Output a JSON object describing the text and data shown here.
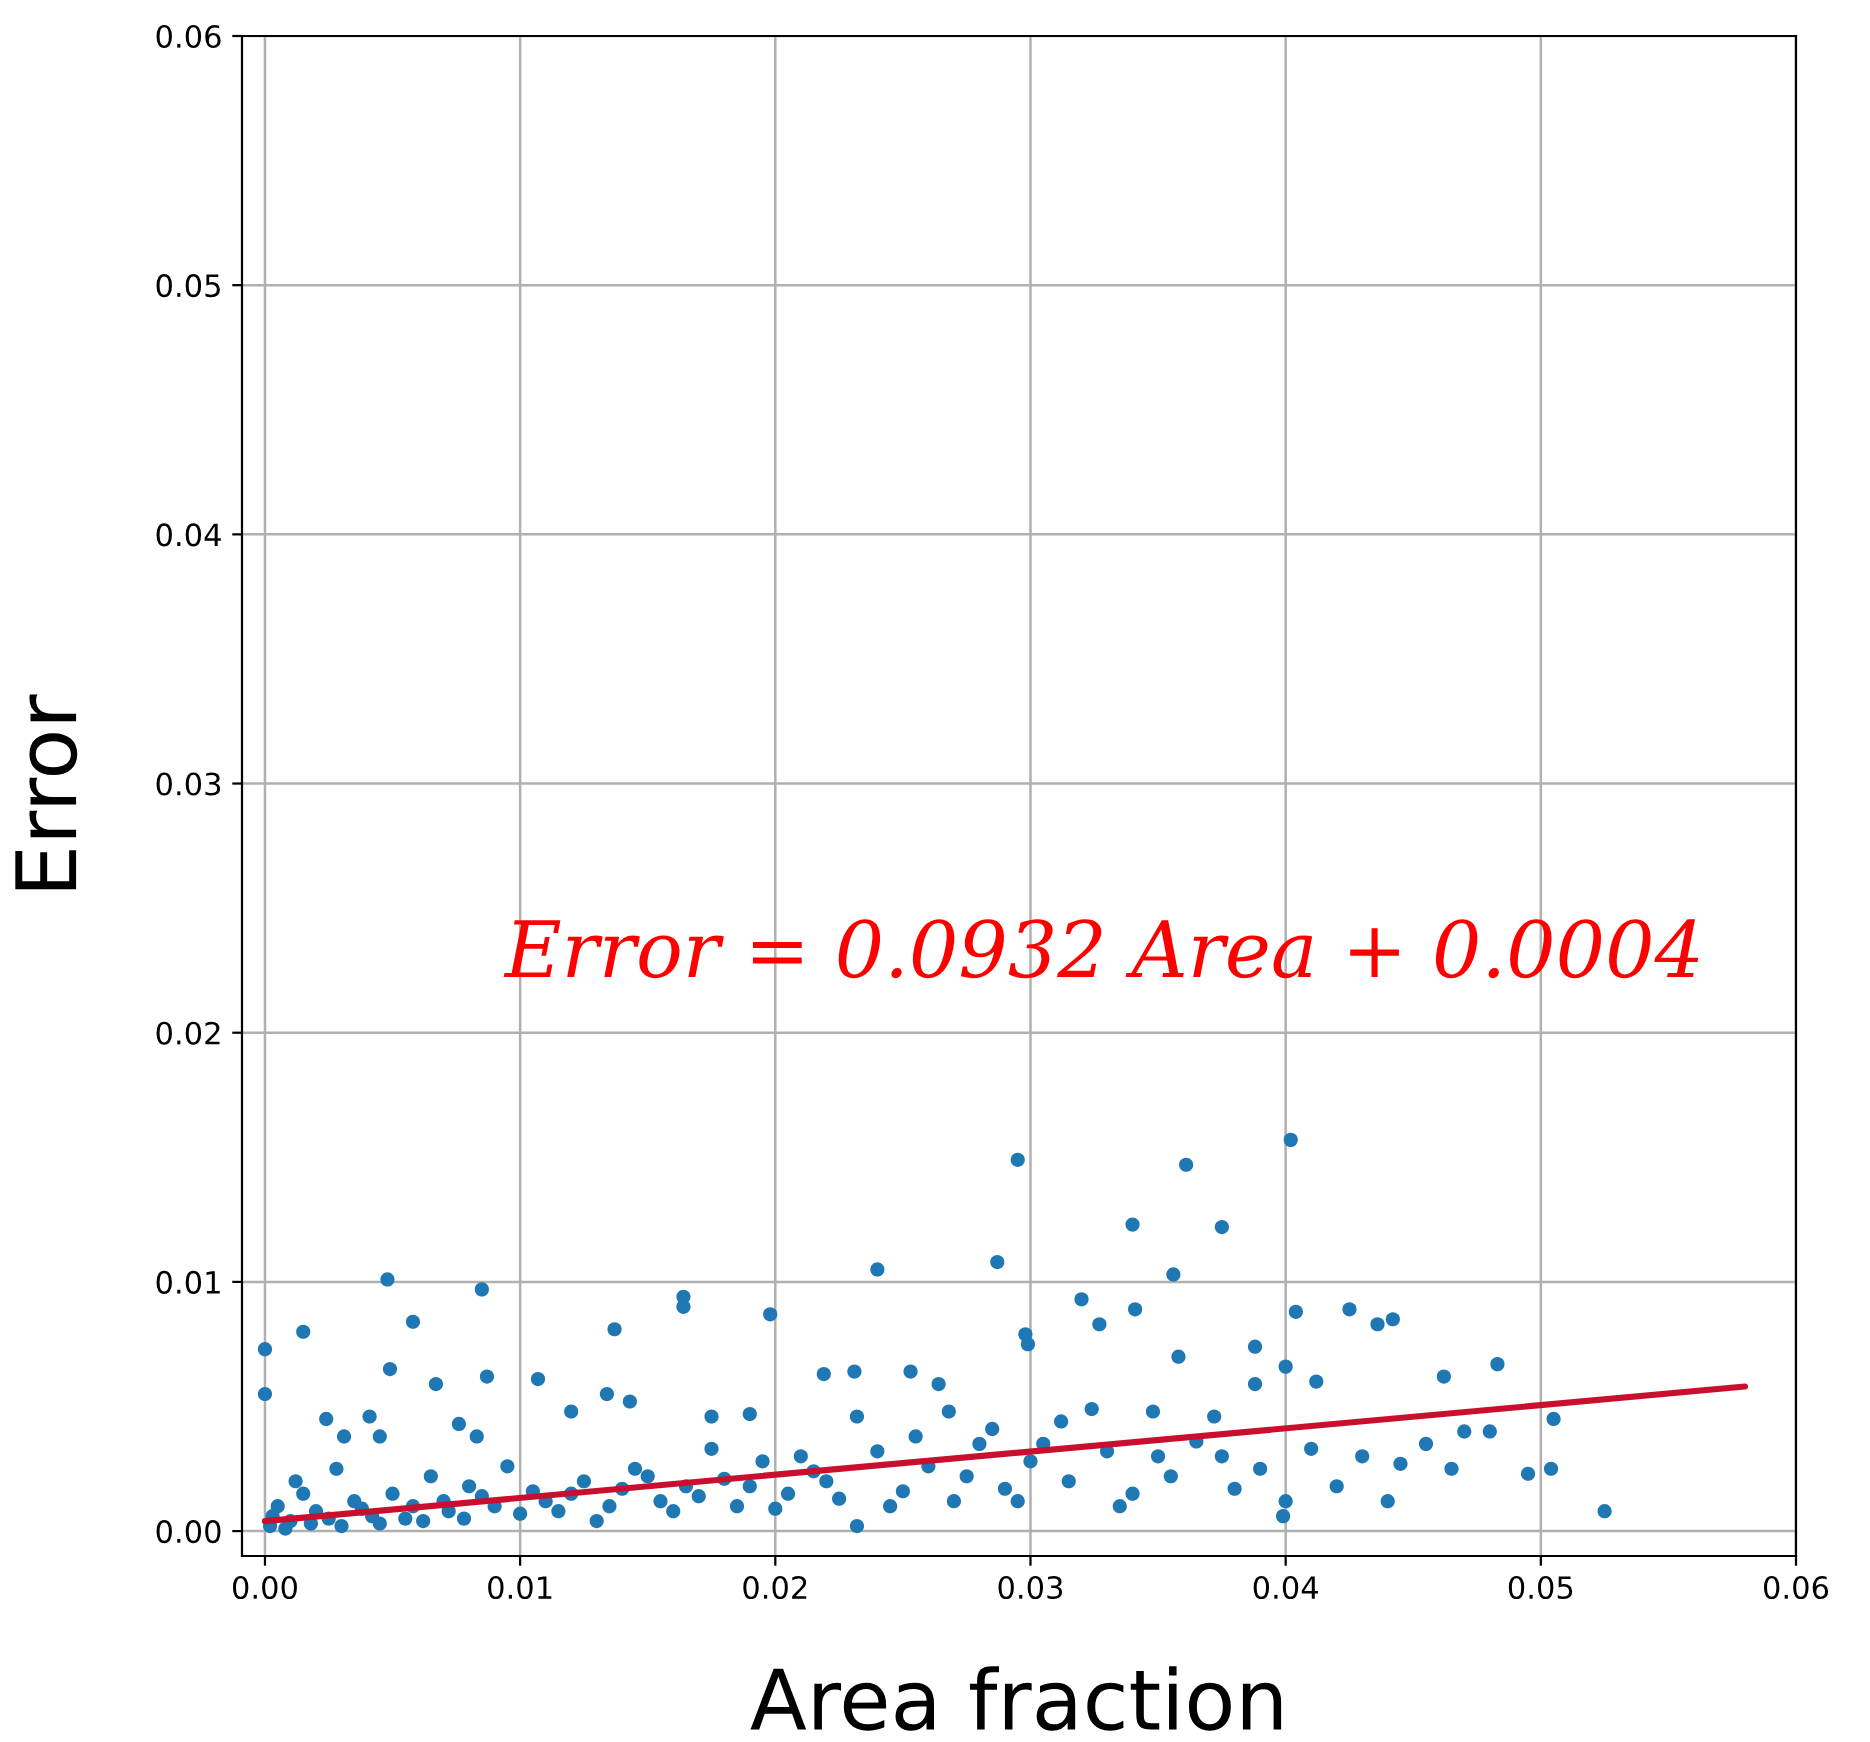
{
  "chart_data": {
    "type": "scatter",
    "xlabel": "Area fraction",
    "ylabel": "Error",
    "annotations": [
      "Error = 0.0932 Area + 0.0004"
    ],
    "xlim": [
      -0.0009,
      0.06
    ],
    "ylim": [
      -0.001,
      0.06
    ],
    "xticks": [
      {
        "value": 0,
        "label": "0.00"
      },
      {
        "value": 0.01,
        "label": "0.01"
      },
      {
        "value": 0.02,
        "label": "0.02"
      },
      {
        "value": 0.03,
        "label": "0.03"
      },
      {
        "value": 0.04,
        "label": "0.04"
      },
      {
        "value": 0.05,
        "label": "0.05"
      },
      {
        "value": 0.06,
        "label": "0.06"
      }
    ],
    "yticks": [
      {
        "value": 0,
        "label": "0.00"
      },
      {
        "value": 0.01,
        "label": "0.01"
      },
      {
        "value": 0.02,
        "label": "0.02"
      },
      {
        "value": 0.03,
        "label": "0.03"
      },
      {
        "value": 0.04,
        "label": "0.04"
      },
      {
        "value": 0.05,
        "label": "0.05"
      },
      {
        "value": 0.06,
        "label": "0.06"
      }
    ],
    "grid": true,
    "series": [
      {
        "marker": "circle",
        "color": "#1f77b4",
        "x": [
          0.0295,
          0.0361,
          0.0402,
          0.034,
          0.0375,
          0.0356,
          0.024,
          0.0287,
          0.0048,
          0.0085,
          0.0,
          0.0015,
          0.0058,
          0.0164,
          0.0164,
          0.0198,
          0.0137,
          0.0,
          0.0049,
          0.0067,
          0.0087,
          0.0107,
          0.0041,
          0.0024,
          0.0031,
          0.0045,
          0.0076,
          0.0083,
          0.012,
          0.0134,
          0.0143,
          0.0175,
          0.0219,
          0.0231,
          0.0253,
          0.0264,
          0.0298,
          0.0299,
          0.032,
          0.0327,
          0.0341,
          0.0358,
          0.0388,
          0.04,
          0.0404,
          0.0425,
          0.0436,
          0.0442,
          0.0483,
          0.0462,
          0.0388,
          0.0412,
          0.0232,
          0.019,
          0.0268,
          0.0312,
          0.0324,
          0.0348,
          0.0372,
          0.0505,
          0.0504,
          0.0495,
          0.0525,
          0.048,
          0.047,
          0.0455,
          0.0445,
          0.043,
          0.042,
          0.04,
          0.0399,
          0.039,
          0.0375,
          0.0365,
          0.0355,
          0.034,
          0.033,
          0.0315,
          0.03,
          0.029,
          0.028,
          0.027,
          0.026,
          0.025,
          0.024,
          0.0232,
          0.0225,
          0.0215,
          0.0205,
          0.0195,
          0.0185,
          0.0175,
          0.0165,
          0.0155,
          0.0145,
          0.0135,
          0.0125,
          0.0115,
          0.0105,
          0.0095,
          0.009,
          0.008,
          0.0072,
          0.0065,
          0.0058,
          0.005,
          0.0042,
          0.0035,
          0.0028,
          0.002,
          0.0015,
          0.001,
          0.0005,
          0.0002,
          0.0003,
          0.0008,
          0.0012,
          0.0018,
          0.0025,
          0.003,
          0.0038,
          0.0045,
          0.0055,
          0.0062,
          0.007,
          0.0078,
          0.0085,
          0.01,
          0.011,
          0.012,
          0.013,
          0.014,
          0.015,
          0.016,
          0.017,
          0.018,
          0.019,
          0.02,
          0.021,
          0.022,
          0.0245,
          0.0255,
          0.0275,
          0.0285,
          0.0295,
          0.0305,
          0.0335,
          0.035,
          0.038,
          0.041,
          0.044,
          0.0465
        ],
        "values": [
          0.0149,
          0.0147,
          0.0157,
          0.0123,
          0.0122,
          0.0103,
          0.0105,
          0.0108,
          0.0101,
          0.0097,
          0.0073,
          0.008,
          0.0084,
          0.0094,
          0.009,
          0.0087,
          0.0081,
          0.0055,
          0.0065,
          0.0059,
          0.0062,
          0.0061,
          0.0046,
          0.0045,
          0.0038,
          0.0038,
          0.0043,
          0.0038,
          0.0048,
          0.0055,
          0.0052,
          0.0046,
          0.0063,
          0.0064,
          0.0064,
          0.0059,
          0.0079,
          0.0075,
          0.0093,
          0.0083,
          0.0089,
          0.007,
          0.0074,
          0.0066,
          0.0088,
          0.0089,
          0.0083,
          0.0085,
          0.0067,
          0.0062,
          0.0059,
          0.006,
          0.0046,
          0.0047,
          0.0048,
          0.0044,
          0.0049,
          0.0048,
          0.0046,
          0.0045,
          0.0025,
          0.0023,
          0.0008,
          0.004,
          0.004,
          0.0035,
          0.0027,
          0.003,
          0.0018,
          0.0012,
          0.0006,
          0.0025,
          0.003,
          0.0036,
          0.0022,
          0.0015,
          0.0032,
          0.002,
          0.0028,
          0.0017,
          0.0035,
          0.0012,
          0.0026,
          0.0016,
          0.0032,
          0.0002,
          0.0013,
          0.0024,
          0.0015,
          0.0028,
          0.001,
          0.0033,
          0.0018,
          0.0012,
          0.0025,
          0.001,
          0.002,
          0.0008,
          0.0016,
          0.0026,
          0.001,
          0.0018,
          0.0008,
          0.0022,
          0.001,
          0.0015,
          0.0006,
          0.0012,
          0.0025,
          0.0008,
          0.0015,
          0.0004,
          0.001,
          0.0002,
          0.0006,
          0.0001,
          0.002,
          0.0003,
          0.0005,
          0.0002,
          0.0009,
          0.0003,
          0.0005,
          0.0004,
          0.0012,
          0.0005,
          0.0014,
          0.0007,
          0.0012,
          0.0015,
          0.0004,
          0.0017,
          0.0022,
          0.0008,
          0.0014,
          0.0021,
          0.0018,
          0.0009,
          0.003,
          0.002,
          0.001,
          0.0038,
          0.0022,
          0.0041,
          0.0012,
          0.0035,
          0.001,
          0.003,
          0.0017,
          0.0033,
          0.0012,
          0.0025
        ]
      },
      {
        "type": "line",
        "color": "#c8102e",
        "x": [
          0,
          0.058
        ],
        "values": [
          0.0004,
          0.0058
        ]
      }
    ]
  }
}
